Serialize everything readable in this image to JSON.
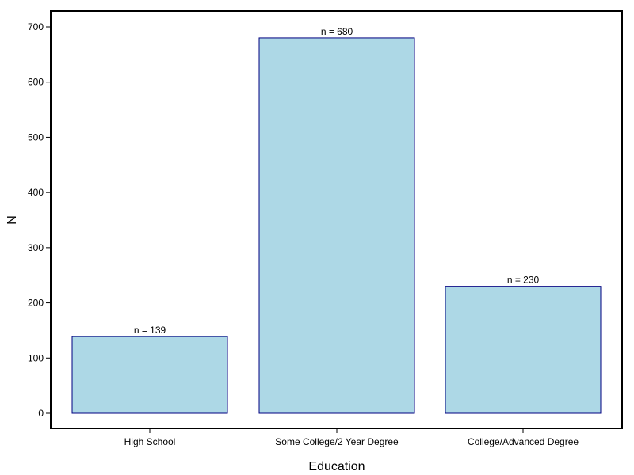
{
  "chart_data": {
    "type": "bar",
    "title": "",
    "xlabel": "Education",
    "ylabel": "N",
    "categories": [
      "High School",
      "Some College/2 Year Degree",
      "College/Advanced Degree"
    ],
    "values": [
      139,
      680,
      230
    ],
    "data_labels": [
      "n =  139",
      "n =  680",
      "n =  230"
    ],
    "ylim": [
      0,
      700
    ],
    "yticks": [
      0,
      100,
      200,
      300,
      400,
      500,
      600,
      700
    ],
    "ytick_labels": [
      "0",
      "100",
      "200",
      "300",
      "400",
      "500",
      "600",
      "700"
    ],
    "grid": false,
    "legend": "none",
    "colors": {
      "bar_fill": "#add8e6",
      "bar_stroke": "#000080",
      "frame": "#000000"
    }
  }
}
